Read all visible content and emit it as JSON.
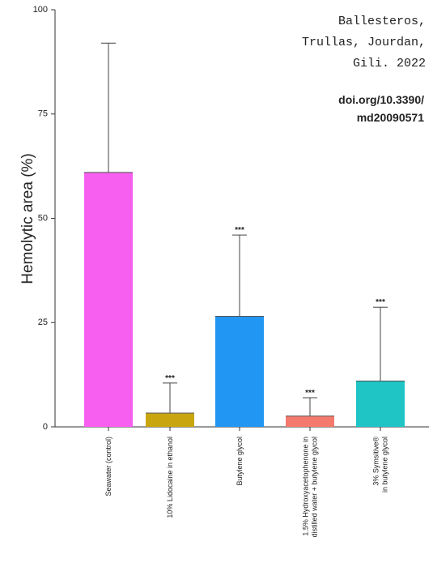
{
  "chart_data": {
    "type": "bar",
    "y_label": "Hemolytic area (%)",
    "categories": [
      "Seawater (control)",
      "10% Lidocaine in ethanol",
      "Butylene glycol",
      "1.5% Hydroxyacetophenone in\ndistilled water + butylene glycol",
      "3% Symsitive®\nin butylene glycol"
    ],
    "values": [
      61,
      3.3,
      26.5,
      2.6,
      11
    ],
    "errors": [
      31,
      7.2,
      19.5,
      4.4,
      17.7
    ],
    "colors": [
      "#f75ff0",
      "#c9a60f",
      "#2196f3",
      "#f47a6e",
      "#1fc4c4"
    ],
    "significance": [
      null,
      "***",
      "***",
      "***",
      "***"
    ],
    "ylim": [
      0,
      100
    ],
    "yticks": [
      0,
      25,
      50,
      75,
      100
    ],
    "citation": [
      "Ballesteros,",
      "Trullas, Jourdan,",
      "Gili. 2022"
    ],
    "doi": [
      "doi.org/10.3390/",
      "md20090571"
    ]
  }
}
